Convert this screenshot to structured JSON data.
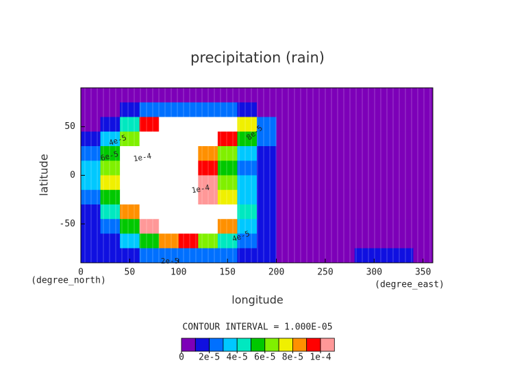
{
  "chart_data": {
    "type": "contour",
    "title": "precipitation (rain)",
    "xlabel": "longitude",
    "ylabel": "latitude",
    "xunit": "(degree_east)",
    "yunit": "(degree_north)",
    "note": "CONTOUR INTERVAL = 1.000E-05",
    "xlim": [
      0,
      360
    ],
    "ylim": [
      -90,
      90
    ],
    "xticks": [
      0,
      50,
      100,
      150,
      200,
      250,
      300,
      350
    ],
    "yticks": [
      -50,
      0,
      50
    ],
    "x": [
      10,
      30,
      50,
      70,
      90,
      110,
      130,
      150,
      170,
      190,
      210,
      230,
      250,
      270,
      290,
      310,
      330,
      350
    ],
    "y": [
      82.5,
      67.5,
      52.5,
      37.5,
      22.5,
      7.5,
      -7.5,
      -22.5,
      -37.5,
      -52.5,
      -67.5,
      -82.5
    ],
    "z": [
      [
        5e-06,
        5e-06,
        5e-06,
        5e-06,
        5e-06,
        5e-06,
        5e-06,
        5e-06,
        5e-06,
        5e-06,
        5e-06,
        5e-06,
        5e-06,
        5e-06,
        5e-06,
        5e-06,
        5e-06,
        5e-06
      ],
      [
        5e-06,
        5e-06,
        1.5e-05,
        2.5e-05,
        2.5e-05,
        2.5e-05,
        2.5e-05,
        2.5e-05,
        1.5e-05,
        5e-06,
        5e-06,
        5e-06,
        5e-06,
        5e-06,
        5e-06,
        5e-06,
        5e-06,
        5e-06
      ],
      [
        5e-06,
        1.5e-05,
        4.5e-05,
        9.5e-05,
        0.0002,
        0.0002,
        0.0002,
        0.0002,
        7.5e-05,
        2.5e-05,
        5e-06,
        5e-06,
        5e-06,
        5e-06,
        5e-06,
        5e-06,
        5e-06,
        5e-06
      ],
      [
        1.5e-05,
        3.5e-05,
        6.5e-05,
        0.0002,
        0.0002,
        0.0002,
        0.0002,
        9.5e-05,
        5.5e-05,
        2.5e-05,
        5e-06,
        5e-06,
        5e-06,
        5e-06,
        5e-06,
        5e-06,
        5e-06,
        5e-06
      ],
      [
        2.5e-05,
        5.5e-05,
        0.0002,
        0.0002,
        0.0002,
        0.0002,
        8.5e-05,
        6.5e-05,
        3.5e-05,
        1.5e-05,
        5e-06,
        5e-06,
        5e-06,
        5e-06,
        5e-06,
        5e-06,
        5e-06,
        5e-06
      ],
      [
        3.5e-05,
        6.5e-05,
        0.0002,
        0.0002,
        0.0002,
        0.0002,
        9.5e-05,
        5.5e-05,
        2.5e-05,
        1.5e-05,
        5e-06,
        5e-06,
        5e-06,
        5e-06,
        5e-06,
        5e-06,
        5e-06,
        5e-06
      ],
      [
        3.5e-05,
        7.5e-05,
        0.0002,
        0.0002,
        0.0002,
        0.0002,
        0.000105,
        6.5e-05,
        3.5e-05,
        1.5e-05,
        5e-06,
        5e-06,
        5e-06,
        5e-06,
        5e-06,
        5e-06,
        5e-06,
        5e-06
      ],
      [
        2.5e-05,
        5.5e-05,
        0.0002,
        0.0002,
        0.0002,
        0.0002,
        0.000105,
        7.5e-05,
        3.5e-05,
        1.5e-05,
        5e-06,
        5e-06,
        5e-06,
        5e-06,
        5e-06,
        5e-06,
        5e-06,
        5e-06
      ],
      [
        1.5e-05,
        4.5e-05,
        8.5e-05,
        0.0002,
        0.0002,
        0.0002,
        0.0002,
        0.0002,
        4.5e-05,
        1.5e-05,
        5e-06,
        5e-06,
        5e-06,
        5e-06,
        5e-06,
        5e-06,
        5e-06,
        5e-06
      ],
      [
        1.5e-05,
        2.5e-05,
        5.5e-05,
        0.000105,
        0.0002,
        0.0002,
        0.0002,
        8.5e-05,
        3.5e-05,
        1.5e-05,
        5e-06,
        5e-06,
        5e-06,
        5e-06,
        5e-06,
        5e-06,
        5e-06,
        5e-06
      ],
      [
        1.5e-05,
        1.5e-05,
        3.5e-05,
        5.5e-05,
        8.5e-05,
        9.5e-05,
        6.5e-05,
        4.5e-05,
        2.5e-05,
        1.5e-05,
        5e-06,
        5e-06,
        5e-06,
        5e-06,
        5e-06,
        5e-06,
        5e-06,
        5e-06
      ],
      [
        1.5e-05,
        1.5e-05,
        1.5e-05,
        2.5e-05,
        2.5e-05,
        2.5e-05,
        2.5e-05,
        2.5e-05,
        1.5e-05,
        1.5e-05,
        5e-06,
        5e-06,
        5e-06,
        5e-06,
        1.5e-05,
        1.5e-05,
        1.5e-05,
        5e-06
      ]
    ],
    "clim": [
      0,
      0.00011
    ],
    "colors": [
      "#7d00b8",
      "#1010e0",
      "#0070ff",
      "#00c8ff",
      "#00e8c0",
      "#00c800",
      "#80f000",
      "#f0f000",
      "#ff9000",
      "#ff0000",
      "#ff9898"
    ],
    "cticks": [
      0,
      {
        "value": 2e-05,
        "label": "2e-5"
      },
      {
        "value": 4e-05,
        "label": "4e-5"
      },
      {
        "value": 6e-05,
        "label": "6e-5"
      },
      {
        "value": 8e-05,
        "label": "8e-5"
      },
      {
        "value": 0.0001,
        "label": "1e-4"
      }
    ],
    "contour_labels": [
      "4e-5",
      "6e-5",
      "1e-4",
      "8e-5",
      "1e-4",
      "4e-5",
      "2e-5"
    ]
  }
}
